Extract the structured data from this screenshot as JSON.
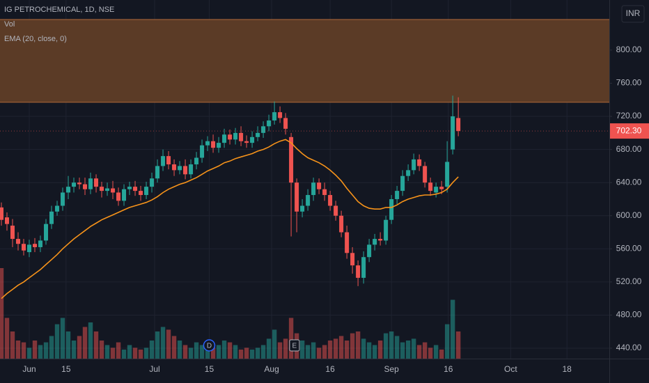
{
  "chart_data": {
    "type": "candlestick",
    "title": "IG PETROCHEMICAL, 1D, NSE",
    "volume_name": "Vol",
    "currency": "INR",
    "up_color": "#26a69a",
    "down_color": "#ef5350",
    "open": [
      610,
      598,
      588,
      572,
      566,
      556,
      566,
      562,
      570,
      590,
      605,
      612,
      628,
      635,
      640,
      638,
      632,
      645,
      635,
      630,
      633,
      628,
      618,
      632,
      635,
      630,
      625,
      635,
      645,
      660,
      672,
      662,
      655,
      660,
      650,
      662,
      670,
      685,
      690,
      682,
      688,
      698,
      692,
      700,
      690,
      688,
      695,
      700,
      708,
      715,
      725,
      718,
      695,
      640,
      605,
      612,
      625,
      640,
      632,
      625,
      612,
      600,
      580,
      555,
      540,
      525,
      550,
      565,
      572,
      570,
      595,
      620,
      630,
      648,
      655,
      668,
      660,
      640,
      628,
      635,
      635,
      680,
      718
    ],
    "high": [
      616,
      604,
      596,
      580,
      572,
      571,
      573,
      576,
      596,
      612,
      618,
      634,
      648,
      646,
      646,
      646,
      652,
      650,
      641,
      640,
      642,
      634,
      638,
      641,
      642,
      636,
      641,
      652,
      668,
      680,
      678,
      668,
      666,
      668,
      668,
      677,
      692,
      696,
      698,
      695,
      705,
      704,
      706,
      708,
      697,
      702,
      708,
      714,
      722,
      738,
      732,
      724,
      700,
      645,
      620,
      632,
      646,
      645,
      640,
      630,
      618,
      606,
      588,
      562,
      546,
      557,
      572,
      578,
      580,
      600,
      625,
      636,
      655,
      662,
      675,
      674,
      665,
      646,
      640,
      642,
      690,
      745,
      743
    ],
    "low": [
      588,
      582,
      562,
      558,
      552,
      550,
      556,
      556,
      565,
      584,
      600,
      606,
      620,
      628,
      632,
      625,
      626,
      628,
      622,
      624,
      620,
      612,
      612,
      625,
      624,
      618,
      620,
      628,
      640,
      654,
      656,
      648,
      650,
      644,
      645,
      656,
      664,
      678,
      676,
      676,
      682,
      686,
      686,
      684,
      682,
      682,
      690,
      694,
      702,
      710,
      712,
      698,
      575,
      580,
      598,
      606,
      618,
      626,
      618,
      606,
      594,
      574,
      548,
      530,
      515,
      518,
      544,
      558,
      564,
      565,
      590,
      614,
      624,
      642,
      650,
      654,
      634,
      624,
      622,
      626,
      628,
      674,
      696
    ],
    "close": [
      595,
      590,
      572,
      566,
      558,
      565,
      562,
      570,
      590,
      605,
      612,
      628,
      635,
      640,
      638,
      632,
      645,
      635,
      630,
      633,
      628,
      618,
      632,
      635,
      630,
      625,
      635,
      645,
      660,
      672,
      662,
      655,
      660,
      650,
      662,
      670,
      685,
      690,
      682,
      688,
      698,
      692,
      700,
      690,
      688,
      695,
      700,
      708,
      715,
      725,
      718,
      705,
      640,
      605,
      612,
      625,
      640,
      632,
      625,
      612,
      600,
      580,
      555,
      540,
      525,
      550,
      565,
      572,
      570,
      595,
      620,
      630,
      648,
      655,
      668,
      660,
      640,
      630,
      635,
      632,
      665,
      720,
      702.3
    ],
    "volume": [
      100,
      45,
      30,
      20,
      18,
      12,
      20,
      15,
      18,
      25,
      38,
      45,
      30,
      20,
      25,
      35,
      40,
      30,
      20,
      15,
      12,
      18,
      10,
      15,
      12,
      10,
      12,
      20,
      30,
      35,
      32,
      25,
      20,
      15,
      12,
      18,
      15,
      10,
      12,
      15,
      20,
      18,
      15,
      10,
      12,
      10,
      12,
      15,
      22,
      32,
      18,
      22,
      45,
      28,
      20,
      15,
      18,
      12,
      15,
      20,
      22,
      25,
      20,
      28,
      30,
      22,
      18,
      15,
      20,
      28,
      30,
      25,
      18,
      20,
      22,
      15,
      18,
      12,
      15,
      10,
      38,
      65,
      30
    ],
    "volume_ylim": [
      0,
      100
    ],
    "ema": {
      "name": "EMA (20, close, 0)",
      "color": "#f7931a",
      "values": [
        500,
        506,
        511,
        516,
        520,
        525,
        530,
        535,
        541,
        547,
        553,
        560,
        566,
        572,
        577,
        582,
        587,
        591,
        595,
        598,
        601,
        604,
        607,
        610,
        612,
        614,
        616,
        619,
        623,
        628,
        632,
        635,
        638,
        640,
        643,
        646,
        650,
        654,
        657,
        660,
        664,
        666,
        669,
        671,
        673,
        675,
        678,
        680,
        683,
        687,
        690,
        692,
        688,
        681,
        675,
        670,
        667,
        664,
        660,
        655,
        649,
        642,
        633,
        625,
        617,
        612,
        609,
        608,
        608,
        610,
        610,
        613,
        617,
        620,
        622,
        624,
        625,
        625,
        626,
        628,
        632,
        640,
        647
      ]
    },
    "zone": {
      "ylim": [
        737,
        837
      ],
      "color": "#5b3b26"
    },
    "current_price": {
      "value": 702.3,
      "label": "702.30"
    },
    "events": [
      {
        "label": "D",
        "x": 37.3
      },
      {
        "label": "E",
        "x": 52.6
      }
    ],
    "xlim": [
      -0.25,
      109.1
    ],
    "xticks": [
      {
        "value": 5,
        "label": "Jun"
      },
      {
        "value": 11.6,
        "label": "15"
      },
      {
        "value": 27.5,
        "label": "Jul"
      },
      {
        "value": 37.3,
        "label": "15"
      },
      {
        "value": 48.5,
        "label": "Aug"
      },
      {
        "value": 59,
        "label": "16"
      },
      {
        "value": 70,
        "label": "Sep"
      },
      {
        "value": 80.2,
        "label": "16"
      },
      {
        "value": 91.4,
        "label": "Oct"
      },
      {
        "value": 101.5,
        "label": "18"
      }
    ],
    "ylim": [
      427.4,
      860.5
    ],
    "yticks": [
      {
        "value": 440,
        "label": "440.00"
      },
      {
        "value": 480,
        "label": "480.00"
      },
      {
        "value": 520,
        "label": "520.00"
      },
      {
        "value": 560,
        "label": "560.00"
      },
      {
        "value": 600,
        "label": "600.00"
      },
      {
        "value": 640,
        "label": "640.00"
      },
      {
        "value": 680,
        "label": "680.00"
      },
      {
        "value": 720,
        "label": "720.00"
      },
      {
        "value": 760,
        "label": "760.00"
      },
      {
        "value": 800,
        "label": "800.00"
      }
    ],
    "grid": true
  }
}
